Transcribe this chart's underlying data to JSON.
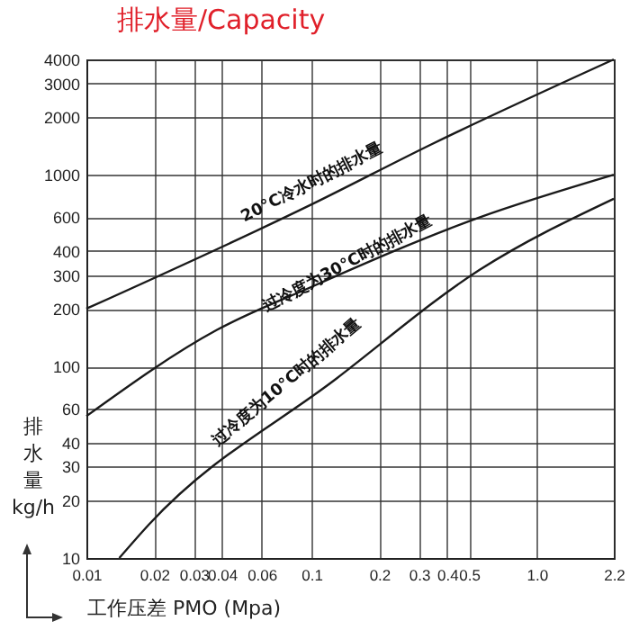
{
  "chart_data": {
    "type": "line",
    "title": "排水量/Capacity",
    "xlabel": "工作压差 PMO (Mpa)",
    "ylabel": "排水量 kg/h",
    "log": "xy",
    "grid": true,
    "legend": false,
    "marker": "none",
    "line_style": "solid",
    "xlim": [
      0.01,
      2.2
    ],
    "ylim": [
      10,
      4000
    ],
    "xticks": [
      0.01,
      0.02,
      0.03,
      0.04,
      0.06,
      0.1,
      0.2,
      0.3,
      0.4,
      0.5,
      {
        "value": 1,
        "label": "1.0"
      },
      2.2
    ],
    "yticks": [
      10,
      20,
      30,
      40,
      60,
      100,
      200,
      300,
      400,
      600,
      1000,
      2000,
      3000,
      4000
    ],
    "series": [
      {
        "color": "#1a1a1a",
        "x": [
          0.01,
          0.1,
          0.34,
          2.2
        ],
        "values": [
          200,
          700,
          1440,
          4000
        ]
      },
      {
        "color": "#1a1a1a",
        "x": [
          0.01,
          0.038,
          0.1,
          0.56,
          2.2
        ],
        "values": [
          55,
          155,
          260,
          600,
          1000
        ]
      },
      {
        "color": "#1a1a1a",
        "x": [
          0.014,
          0.019,
          0.13,
          0.56,
          2.2
        ],
        "values": [
          10,
          15,
          87,
          320,
          750
        ]
      }
    ],
    "annotations": [
      "20°C冷水时的排水量",
      "过冷度为30°C时的排水量",
      "过冷度为10°C时的排水量"
    ]
  }
}
